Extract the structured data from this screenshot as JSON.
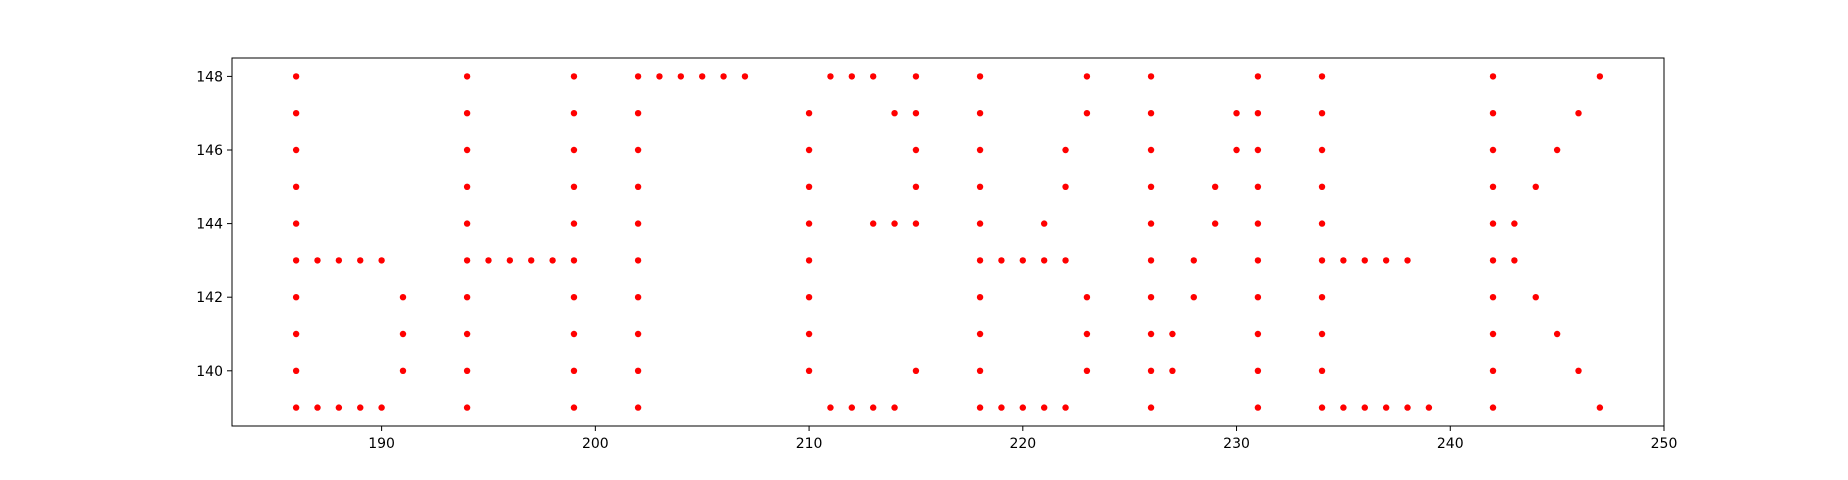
{
  "chart_data": {
    "type": "scatter",
    "title": "",
    "xlabel": "",
    "ylabel": "",
    "xlim": [
      183,
      250
    ],
    "ylim": [
      138.5,
      148.5
    ],
    "xticks": [
      190,
      200,
      210,
      220,
      230,
      240,
      250
    ],
    "yticks": [
      140,
      142,
      144,
      146,
      148
    ],
    "grid": false,
    "marker_color": "#ff0000",
    "points": [
      [
        186,
        148
      ],
      [
        186,
        147
      ],
      [
        186,
        146
      ],
      [
        186,
        145
      ],
      [
        186,
        144
      ],
      [
        186,
        143
      ],
      [
        186,
        142
      ],
      [
        186,
        141
      ],
      [
        186,
        140
      ],
      [
        186,
        139
      ],
      [
        187,
        143
      ],
      [
        188,
        143
      ],
      [
        189,
        143
      ],
      [
        190,
        143
      ],
      [
        191,
        142
      ],
      [
        191,
        141
      ],
      [
        191,
        140
      ],
      [
        187,
        139
      ],
      [
        188,
        139
      ],
      [
        189,
        139
      ],
      [
        190,
        139
      ],
      [
        194,
        148
      ],
      [
        194,
        147
      ],
      [
        194,
        146
      ],
      [
        194,
        145
      ],
      [
        194,
        144
      ],
      [
        194,
        143
      ],
      [
        194,
        142
      ],
      [
        194,
        141
      ],
      [
        194,
        140
      ],
      [
        194,
        139
      ],
      [
        195,
        143
      ],
      [
        196,
        143
      ],
      [
        197,
        143
      ],
      [
        198,
        143
      ],
      [
        199,
        148
      ],
      [
        199,
        147
      ],
      [
        199,
        146
      ],
      [
        199,
        145
      ],
      [
        199,
        144
      ],
      [
        199,
        143
      ],
      [
        199,
        142
      ],
      [
        199,
        141
      ],
      [
        199,
        140
      ],
      [
        199,
        139
      ],
      [
        202,
        148
      ],
      [
        202,
        147
      ],
      [
        202,
        146
      ],
      [
        202,
        145
      ],
      [
        202,
        144
      ],
      [
        202,
        143
      ],
      [
        202,
        142
      ],
      [
        202,
        141
      ],
      [
        202,
        140
      ],
      [
        202,
        139
      ],
      [
        203,
        148
      ],
      [
        204,
        148
      ],
      [
        205,
        148
      ],
      [
        206,
        148
      ],
      [
        207,
        148
      ],
      [
        210,
        147
      ],
      [
        210,
        146
      ],
      [
        210,
        145
      ],
      [
        210,
        144
      ],
      [
        210,
        143
      ],
      [
        210,
        142
      ],
      [
        210,
        141
      ],
      [
        210,
        140
      ],
      [
        211,
        148
      ],
      [
        212,
        148
      ],
      [
        213,
        148
      ],
      [
        214,
        147
      ],
      [
        215,
        148
      ],
      [
        215,
        147
      ],
      [
        215,
        146
      ],
      [
        215,
        145
      ],
      [
        215,
        144
      ],
      [
        215,
        140
      ],
      [
        213,
        144
      ],
      [
        214,
        144
      ],
      [
        211,
        139
      ],
      [
        212,
        139
      ],
      [
        213,
        139
      ],
      [
        214,
        139
      ],
      [
        218,
        148
      ],
      [
        218,
        147
      ],
      [
        218,
        146
      ],
      [
        218,
        145
      ],
      [
        218,
        144
      ],
      [
        218,
        143
      ],
      [
        218,
        142
      ],
      [
        218,
        141
      ],
      [
        218,
        140
      ],
      [
        218,
        139
      ],
      [
        219,
        143
      ],
      [
        220,
        143
      ],
      [
        221,
        143
      ],
      [
        222,
        143
      ],
      [
        221,
        144
      ],
      [
        222,
        145
      ],
      [
        222,
        146
      ],
      [
        223,
        148
      ],
      [
        223,
        147
      ],
      [
        223,
        142
      ],
      [
        223,
        141
      ],
      [
        223,
        140
      ],
      [
        219,
        139
      ],
      [
        220,
        139
      ],
      [
        221,
        139
      ],
      [
        222,
        139
      ],
      [
        226,
        148
      ],
      [
        226,
        147
      ],
      [
        226,
        146
      ],
      [
        226,
        145
      ],
      [
        226,
        144
      ],
      [
        226,
        143
      ],
      [
        226,
        142
      ],
      [
        226,
        141
      ],
      [
        226,
        140
      ],
      [
        226,
        139
      ],
      [
        227,
        141
      ],
      [
        227,
        140
      ],
      [
        228,
        143
      ],
      [
        228,
        142
      ],
      [
        229,
        145
      ],
      [
        229,
        144
      ],
      [
        230,
        147
      ],
      [
        230,
        146
      ],
      [
        231,
        148
      ],
      [
        231,
        147
      ],
      [
        231,
        146
      ],
      [
        231,
        145
      ],
      [
        231,
        144
      ],
      [
        231,
        143
      ],
      [
        231,
        142
      ],
      [
        231,
        141
      ],
      [
        231,
        140
      ],
      [
        231,
        139
      ],
      [
        234,
        148
      ],
      [
        234,
        147
      ],
      [
        234,
        146
      ],
      [
        234,
        145
      ],
      [
        234,
        144
      ],
      [
        234,
        143
      ],
      [
        234,
        142
      ],
      [
        234,
        141
      ],
      [
        234,
        140
      ],
      [
        234,
        139
      ],
      [
        235,
        143
      ],
      [
        236,
        143
      ],
      [
        237,
        143
      ],
      [
        238,
        143
      ],
      [
        235,
        139
      ],
      [
        236,
        139
      ],
      [
        237,
        139
      ],
      [
        238,
        139
      ],
      [
        239,
        139
      ],
      [
        242,
        148
      ],
      [
        242,
        147
      ],
      [
        242,
        146
      ],
      [
        242,
        145
      ],
      [
        242,
        144
      ],
      [
        242,
        143
      ],
      [
        242,
        142
      ],
      [
        242,
        141
      ],
      [
        242,
        140
      ],
      [
        242,
        139
      ],
      [
        243,
        144
      ],
      [
        243,
        143
      ],
      [
        244,
        145
      ],
      [
        244,
        142
      ],
      [
        245,
        146
      ],
      [
        245,
        141
      ],
      [
        246,
        147
      ],
      [
        246,
        140
      ],
      [
        247,
        148
      ],
      [
        247,
        139
      ]
    ]
  }
}
